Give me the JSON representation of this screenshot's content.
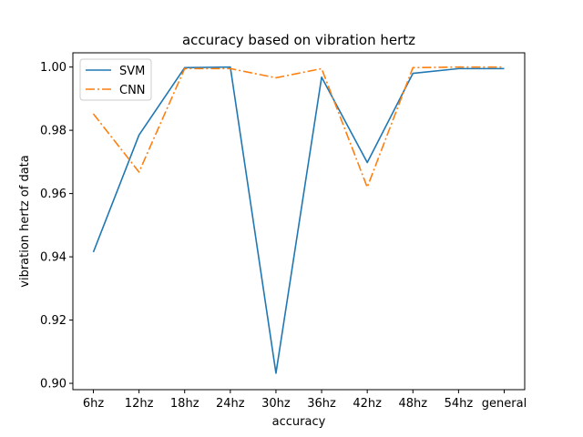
{
  "chart_data": {
    "type": "line",
    "title": "accuracy based on vibration hertz",
    "xlabel": "accuracy",
    "ylabel": "vibration hertz of data",
    "categories": [
      "6hz",
      "12hz",
      "18hz",
      "24hz",
      "30hz",
      "36hz",
      "42hz",
      "48hz",
      "54hz",
      "general"
    ],
    "ylim": [
      0.898,
      1.0045
    ],
    "yticks": [
      0.9,
      0.92,
      0.94,
      0.96,
      0.98,
      1.0
    ],
    "ytick_labels": [
      "0.90",
      "0.92",
      "0.94",
      "0.96",
      "0.98",
      "1.00"
    ],
    "grid": false,
    "legend_position": "top-left",
    "series": [
      {
        "name": "SVM",
        "style": "solid",
        "color": "#1f77b4",
        "values": [
          0.9415,
          0.9785,
          0.9998,
          1.0,
          0.9032,
          0.9968,
          0.9698,
          0.998,
          0.9995,
          0.9995
        ]
      },
      {
        "name": "CNN",
        "style": "dashdot",
        "color": "#ff7f0e",
        "values": [
          0.9852,
          0.9668,
          0.9995,
          0.9995,
          0.9966,
          0.9995,
          0.962,
          0.9998,
          1.0,
          1.0
        ]
      }
    ]
  }
}
